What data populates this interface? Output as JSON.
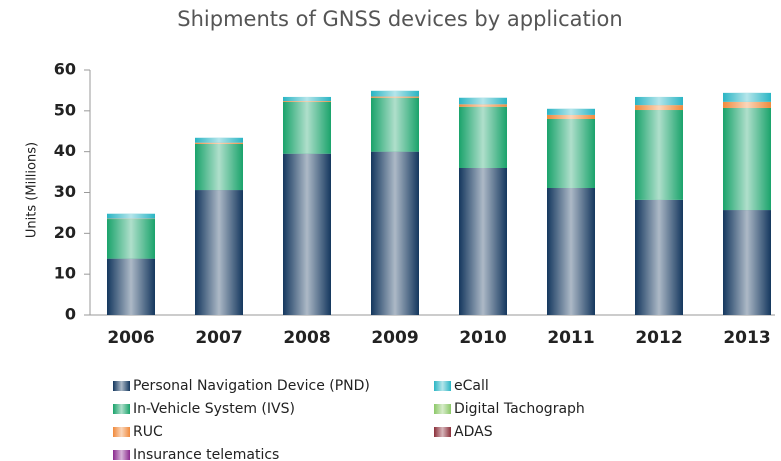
{
  "chart_data": {
    "type": "stacked_bar",
    "title": "Shipments of GNSS devices by application",
    "y_label": "Units (Millions)",
    "categories": [
      "2006",
      "2007",
      "2008",
      "2009",
      "2010",
      "2011",
      "2012",
      "2013"
    ],
    "series": [
      {
        "name": "Personal Navigation Device (PND)",
        "color": "#14375e",
        "values": [
          13.8,
          30.6,
          39.5,
          40.0,
          36.0,
          31.1,
          28.2,
          25.7
        ]
      },
      {
        "name": "In-Vehicle System (IVS)",
        "color": "#1aa36b",
        "values": [
          9.7,
          11.3,
          12.7,
          13.2,
          15.0,
          16.9,
          22.0,
          25.0
        ]
      },
      {
        "name": "RUC",
        "color": "#f08a3c",
        "values": [
          0.1,
          0.3,
          0.2,
          0.3,
          0.6,
          1.0,
          1.2,
          1.5
        ]
      },
      {
        "name": "eCall",
        "color": "#2ab5c4",
        "values": [
          1.2,
          1.2,
          1.0,
          1.4,
          1.6,
          1.5,
          2.0,
          2.2
        ]
      },
      {
        "name": "Digital Tachograph",
        "color": "#8cc868",
        "values": [
          0,
          0,
          0,
          0,
          0,
          0,
          0,
          0
        ]
      },
      {
        "name": "ADAS",
        "color": "#8b2f3a",
        "values": [
          0,
          0,
          0,
          0,
          0,
          0,
          0,
          0
        ]
      },
      {
        "name": "Insurance telematics",
        "color": "#8b2a8f",
        "values": [
          0,
          0,
          0,
          0,
          0,
          0,
          0,
          0
        ]
      }
    ],
    "ylim": [
      0,
      60
    ],
    "yticks": [
      0,
      10,
      20,
      30,
      40,
      50,
      60
    ]
  }
}
